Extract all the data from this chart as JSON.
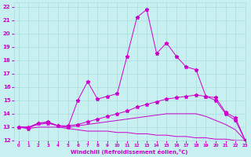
{
  "xlabel": "Windchill (Refroidissement éolien,°C)",
  "ylabel": "",
  "xlim": [
    -0.5,
    23
  ],
  "ylim": [
    12,
    22.3
  ],
  "yticks": [
    12,
    13,
    14,
    15,
    16,
    17,
    18,
    19,
    20,
    21,
    22
  ],
  "xticks": [
    0,
    1,
    2,
    3,
    4,
    5,
    6,
    7,
    8,
    9,
    10,
    11,
    12,
    13,
    14,
    15,
    16,
    17,
    18,
    19,
    20,
    21,
    22,
    23
  ],
  "bg_color": "#c8f0f0",
  "line_color": "#cc00cc",
  "grid_color": "#aadddd",
  "lines": [
    {
      "x": [
        0,
        1,
        2,
        3,
        4,
        5,
        6,
        7,
        8,
        9,
        10,
        11,
        12,
        13,
        14,
        15,
        16,
        17,
        18,
        19,
        20,
        21,
        22,
        23
      ],
      "y": [
        13.0,
        12.9,
        13.3,
        13.3,
        13.1,
        13.0,
        15.0,
        16.4,
        15.1,
        15.3,
        15.5,
        18.3,
        21.2,
        21.8,
        18.5,
        19.3,
        18.3,
        17.5,
        17.3,
        15.3,
        15.2,
        14.1,
        13.7,
        12.0
      ],
      "marker": "*",
      "markersize": 3.5
    },
    {
      "x": [
        0,
        1,
        2,
        3,
        4,
        5,
        6,
        7,
        8,
        9,
        10,
        11,
        12,
        13,
        14,
        15,
        16,
        17,
        18,
        19,
        20,
        21,
        22,
        23
      ],
      "y": [
        13.0,
        13.0,
        13.3,
        13.4,
        13.1,
        13.1,
        13.2,
        13.4,
        13.6,
        13.8,
        14.0,
        14.2,
        14.5,
        14.7,
        14.9,
        15.1,
        15.2,
        15.3,
        15.4,
        15.3,
        15.0,
        14.0,
        13.5,
        12.0
      ],
      "marker": "*",
      "markersize": 3.5
    },
    {
      "x": [
        0,
        1,
        2,
        3,
        4,
        5,
        6,
        7,
        8,
        9,
        10,
        11,
        12,
        13,
        14,
        15,
        16,
        17,
        18,
        19,
        20,
        21,
        22,
        23
      ],
      "y": [
        13.0,
        13.0,
        13.2,
        13.3,
        13.1,
        13.0,
        13.1,
        13.2,
        13.3,
        13.4,
        13.5,
        13.6,
        13.7,
        13.8,
        13.9,
        14.0,
        14.0,
        14.0,
        14.0,
        13.8,
        13.5,
        13.2,
        12.8,
        12.0
      ],
      "marker": null,
      "markersize": 0
    },
    {
      "x": [
        0,
        1,
        2,
        3,
        4,
        5,
        6,
        7,
        8,
        9,
        10,
        11,
        12,
        13,
        14,
        15,
        16,
        17,
        18,
        19,
        20,
        21,
        22,
        23
      ],
      "y": [
        13.0,
        12.9,
        13.0,
        13.0,
        13.0,
        12.9,
        12.8,
        12.7,
        12.7,
        12.7,
        12.6,
        12.6,
        12.5,
        12.5,
        12.4,
        12.4,
        12.3,
        12.3,
        12.2,
        12.2,
        12.1,
        12.1,
        12.0,
        12.0
      ],
      "marker": null,
      "markersize": 0
    }
  ]
}
